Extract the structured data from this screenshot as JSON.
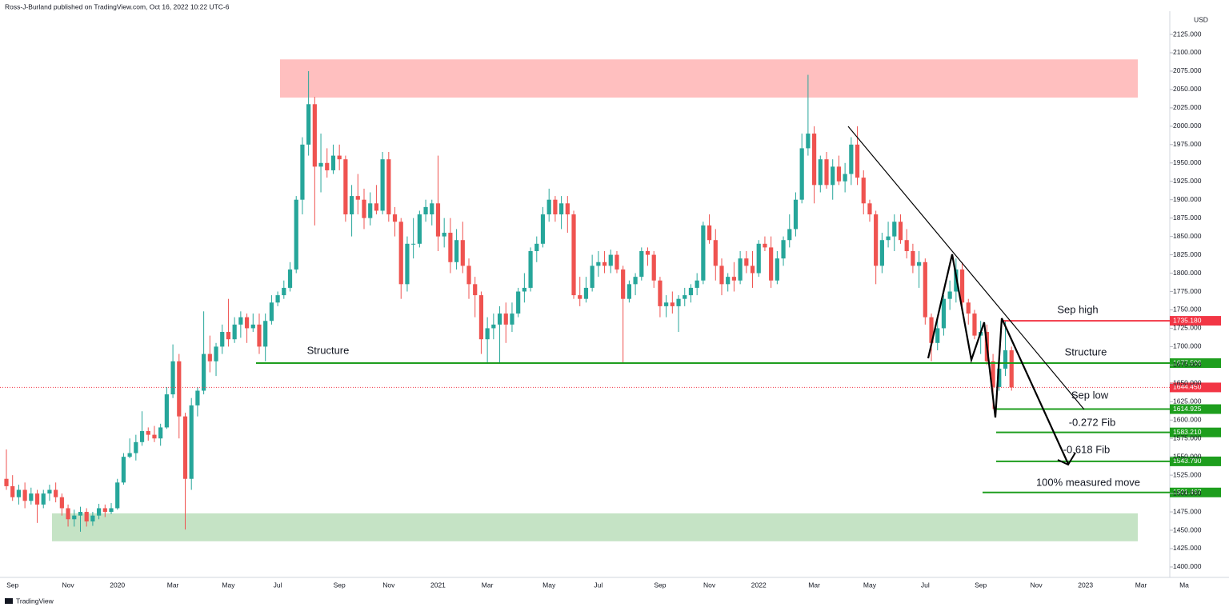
{
  "header": "Ross-J-Burland published on TradingView.com, Oct 16, 2022 10:22 UTC-6",
  "footer": "TradingView",
  "chart_data": {
    "type": "candlestick",
    "currency": "USD",
    "categories": [
      null,
      "Sep",
      null,
      null,
      null,
      null,
      null,
      null,
      null,
      null,
      "Nov",
      null,
      null,
      null,
      null,
      null,
      null,
      null,
      "2020",
      null,
      null,
      null,
      null,
      null,
      null,
      null,
      null,
      "Mar",
      null,
      null,
      null,
      null,
      null,
      null,
      null,
      null,
      "May",
      null,
      null,
      null,
      null,
      null,
      null,
      null,
      "Jul",
      null,
      null,
      null,
      null,
      null,
      null,
      null,
      null,
      null,
      "Sep",
      null,
      null,
      null,
      null,
      null,
      null,
      null,
      "Nov",
      null,
      null,
      null,
      null,
      null,
      null,
      null,
      "2021",
      null,
      null,
      null,
      null,
      null,
      null,
      null,
      "Mar",
      null,
      null,
      null,
      null,
      null,
      null,
      null,
      null,
      null,
      "May",
      null,
      null,
      null,
      null,
      null,
      null,
      null,
      "Jul",
      null,
      null,
      null,
      null,
      null,
      null,
      null,
      null,
      null,
      "Sep",
      null,
      null,
      null,
      null,
      null,
      null,
      null,
      "Nov",
      null,
      null,
      null,
      null,
      null,
      null,
      null,
      "2022",
      null,
      null,
      null,
      null,
      null,
      null,
      null,
      null,
      "Mar",
      null,
      null,
      null,
      null,
      null,
      null,
      null,
      null,
      "May",
      null,
      null,
      null,
      null,
      null,
      null,
      null,
      null,
      "Jul",
      null,
      null,
      null,
      null,
      null,
      null,
      null,
      null,
      "Sep",
      null,
      null,
      null,
      null,
      null,
      null,
      null,
      null,
      "Nov",
      null,
      null,
      null,
      null,
      null,
      null,
      null,
      "2023",
      null,
      null,
      null,
      null,
      null,
      null,
      null,
      null,
      "Mar",
      null,
      null,
      null,
      null,
      null,
      null,
      "Ma",
      null
    ],
    "ohlc": [
      [
        1520,
        1560,
        1505,
        1510
      ],
      [
        1510,
        1525,
        1490,
        1495
      ],
      [
        1495,
        1512,
        1485,
        1505
      ],
      [
        1505,
        1515,
        1480,
        1490
      ],
      [
        1490,
        1508,
        1485,
        1500
      ],
      [
        1500,
        1505,
        1460,
        1485
      ],
      [
        1485,
        1505,
        1480,
        1500
      ],
      [
        1500,
        1512,
        1490,
        1505
      ],
      [
        1505,
        1515,
        1488,
        1495
      ],
      [
        1495,
        1500,
        1470,
        1480
      ],
      [
        1480,
        1485,
        1455,
        1465
      ],
      [
        1465,
        1478,
        1455,
        1470
      ],
      [
        1470,
        1482,
        1448,
        1475
      ],
      [
        1475,
        1480,
        1455,
        1462
      ],
      [
        1462,
        1475,
        1456,
        1470
      ],
      [
        1470,
        1486,
        1465,
        1480
      ],
      [
        1480,
        1485,
        1468,
        1475
      ],
      [
        1475,
        1487,
        1472,
        1480
      ],
      [
        1480,
        1520,
        1478,
        1515
      ],
      [
        1515,
        1555,
        1512,
        1550
      ],
      [
        1550,
        1575,
        1548,
        1555
      ],
      [
        1555,
        1580,
        1545,
        1570
      ],
      [
        1570,
        1612,
        1565,
        1585
      ],
      [
        1585,
        1590,
        1572,
        1580
      ],
      [
        1580,
        1592,
        1570,
        1575
      ],
      [
        1575,
        1595,
        1565,
        1590
      ],
      [
        1590,
        1645,
        1588,
        1635
      ],
      [
        1635,
        1703,
        1630,
        1680
      ],
      [
        1680,
        1690,
        1575,
        1605
      ],
      [
        1605,
        1610,
        1451,
        1520
      ],
      [
        1520,
        1630,
        1505,
        1620
      ],
      [
        1620,
        1645,
        1605,
        1640
      ],
      [
        1640,
        1748,
        1635,
        1690
      ],
      [
        1690,
        1715,
        1665,
        1680
      ],
      [
        1680,
        1705,
        1660,
        1700
      ],
      [
        1700,
        1730,
        1690,
        1720
      ],
      [
        1720,
        1765,
        1700,
        1710
      ],
      [
        1710,
        1740,
        1705,
        1730
      ],
      [
        1730,
        1748,
        1712,
        1740
      ],
      [
        1740,
        1745,
        1705,
        1725
      ],
      [
        1725,
        1745,
        1720,
        1730
      ],
      [
        1730,
        1745,
        1690,
        1700
      ],
      [
        1700,
        1745,
        1680,
        1735
      ],
      [
        1735,
        1770,
        1730,
        1760
      ],
      [
        1760,
        1775,
        1755,
        1770
      ],
      [
        1770,
        1790,
        1765,
        1780
      ],
      [
        1780,
        1815,
        1775,
        1805
      ],
      [
        1805,
        1905,
        1800,
        1900
      ],
      [
        1900,
        1985,
        1880,
        1975
      ],
      [
        1975,
        2075,
        1960,
        2030
      ],
      [
        2030,
        2040,
        1865,
        1945
      ],
      [
        1945,
        1990,
        1910,
        1950
      ],
      [
        1950,
        1970,
        1930,
        1940
      ],
      [
        1940,
        1975,
        1935,
        1960
      ],
      [
        1960,
        1975,
        1940,
        1955
      ],
      [
        1955,
        1960,
        1870,
        1880
      ],
      [
        1880,
        1920,
        1850,
        1905
      ],
      [
        1905,
        1935,
        1880,
        1900
      ],
      [
        1900,
        1915,
        1860,
        1875
      ],
      [
        1875,
        1910,
        1865,
        1895
      ],
      [
        1895,
        1920,
        1880,
        1885
      ],
      [
        1885,
        1965,
        1880,
        1955
      ],
      [
        1955,
        1965,
        1870,
        1880
      ],
      [
        1880,
        1890,
        1850,
        1870
      ],
      [
        1870,
        1875,
        1765,
        1785
      ],
      [
        1785,
        1850,
        1775,
        1840
      ],
      [
        1840,
        1875,
        1820,
        1840
      ],
      [
        1840,
        1885,
        1835,
        1880
      ],
      [
        1880,
        1900,
        1870,
        1890
      ],
      [
        1880,
        1900,
        1865,
        1895
      ],
      [
        1895,
        1960,
        1830,
        1850
      ],
      [
        1850,
        1875,
        1835,
        1855
      ],
      [
        1855,
        1875,
        1800,
        1815
      ],
      [
        1815,
        1860,
        1805,
        1845
      ],
      [
        1845,
        1870,
        1800,
        1810
      ],
      [
        1810,
        1820,
        1765,
        1785
      ],
      [
        1785,
        1795,
        1740,
        1770
      ],
      [
        1770,
        1775,
        1690,
        1710
      ],
      [
        1710,
        1740,
        1678,
        1725
      ],
      [
        1725,
        1745,
        1710,
        1730
      ],
      [
        1730,
        1755,
        1678,
        1745
      ],
      [
        1745,
        1760,
        1705,
        1730
      ],
      [
        1730,
        1760,
        1720,
        1745
      ],
      [
        1745,
        1780,
        1740,
        1775
      ],
      [
        1775,
        1800,
        1760,
        1780
      ],
      [
        1780,
        1835,
        1775,
        1830
      ],
      [
        1830,
        1850,
        1815,
        1840
      ],
      [
        1840,
        1890,
        1835,
        1880
      ],
      [
        1880,
        1915,
        1870,
        1900
      ],
      [
        1900,
        1905,
        1870,
        1880
      ],
      [
        1880,
        1905,
        1860,
        1895
      ],
      [
        1895,
        1905,
        1855,
        1880
      ],
      [
        1880,
        1885,
        1765,
        1770
      ],
      [
        1770,
        1795,
        1755,
        1765
      ],
      [
        1765,
        1795,
        1760,
        1780
      ],
      [
        1780,
        1825,
        1775,
        1810
      ],
      [
        1810,
        1830,
        1795,
        1815
      ],
      [
        1815,
        1830,
        1800,
        1810
      ],
      [
        1810,
        1832,
        1800,
        1825
      ],
      [
        1825,
        1830,
        1800,
        1805
      ],
      [
        1805,
        1810,
        1678,
        1765
      ],
      [
        1765,
        1790,
        1760,
        1785
      ],
      [
        1785,
        1800,
        1770,
        1795
      ],
      [
        1795,
        1835,
        1790,
        1830
      ],
      [
        1830,
        1835,
        1810,
        1825
      ],
      [
        1825,
        1830,
        1780,
        1790
      ],
      [
        1790,
        1795,
        1740,
        1755
      ],
      [
        1755,
        1770,
        1740,
        1760
      ],
      [
        1760,
        1775,
        1745,
        1755
      ],
      [
        1755,
        1770,
        1720,
        1765
      ],
      [
        1765,
        1780,
        1755,
        1770
      ],
      [
        1770,
        1785,
        1760,
        1780
      ],
      [
        1780,
        1800,
        1770,
        1790
      ],
      [
        1790,
        1870,
        1785,
        1865
      ],
      [
        1865,
        1880,
        1840,
        1845
      ],
      [
        1845,
        1860,
        1790,
        1810
      ],
      [
        1810,
        1820,
        1770,
        1785
      ],
      [
        1785,
        1800,
        1775,
        1795
      ],
      [
        1795,
        1815,
        1775,
        1790
      ],
      [
        1790,
        1830,
        1785,
        1820
      ],
      [
        1820,
        1830,
        1800,
        1810
      ],
      [
        1810,
        1830,
        1780,
        1800
      ],
      [
        1800,
        1845,
        1795,
        1840
      ],
      [
        1840,
        1850,
        1830,
        1835
      ],
      [
        1835,
        1850,
        1780,
        1790
      ],
      [
        1790,
        1830,
        1785,
        1820
      ],
      [
        1820,
        1850,
        1810,
        1845
      ],
      [
        1845,
        1880,
        1835,
        1860
      ],
      [
        1860,
        1910,
        1850,
        1900
      ],
      [
        1900,
        1990,
        1895,
        1970
      ],
      [
        1970,
        2070,
        1960,
        1990
      ],
      [
        1990,
        2000,
        1895,
        1920
      ],
      [
        1920,
        1960,
        1910,
        1955
      ],
      [
        1955,
        1965,
        1915,
        1920
      ],
      [
        1920,
        1955,
        1900,
        1945
      ],
      [
        1945,
        1960,
        1920,
        1925
      ],
      [
        1925,
        1950,
        1910,
        1935
      ],
      [
        1935,
        1985,
        1920,
        1975
      ],
      [
        1975,
        2000,
        1920,
        1930
      ],
      [
        1930,
        1940,
        1880,
        1895
      ],
      [
        1895,
        1900,
        1870,
        1880
      ],
      [
        1880,
        1885,
        1785,
        1810
      ],
      [
        1810,
        1855,
        1800,
        1845
      ],
      [
        1845,
        1870,
        1835,
        1850
      ],
      [
        1850,
        1880,
        1830,
        1870
      ],
      [
        1870,
        1880,
        1840,
        1845
      ],
      [
        1845,
        1860,
        1820,
        1830
      ],
      [
        1830,
        1840,
        1800,
        1810
      ],
      [
        1810,
        1830,
        1780,
        1815
      ],
      [
        1815,
        1820,
        1730,
        1740
      ],
      [
        1740,
        1745,
        1680,
        1705
      ],
      [
        1705,
        1740,
        1695,
        1725
      ],
      [
        1725,
        1770,
        1715,
        1765
      ],
      [
        1765,
        1790,
        1750,
        1775
      ],
      [
        1775,
        1820,
        1760,
        1805
      ],
      [
        1805,
        1815,
        1745,
        1760
      ],
      [
        1760,
        1765,
        1730,
        1745
      ],
      [
        1745,
        1750,
        1710,
        1715
      ],
      [
        1715,
        1735,
        1690,
        1720
      ],
      [
        1720,
        1730,
        1675,
        1680
      ],
      [
        1680,
        1690,
        1615,
        1645
      ],
      [
        1645,
        1680,
        1640,
        1670
      ],
      [
        1670,
        1735,
        1660,
        1695
      ],
      [
        1695,
        1700,
        1640,
        1644.45
      ],
      null,
      null,
      null,
      null,
      null,
      null,
      null,
      null,
      null,
      null,
      null,
      null,
      null,
      null,
      null,
      null,
      null,
      null,
      null,
      null,
      null,
      null,
      null,
      null,
      null,
      null,
      null,
      null,
      null
    ],
    "up_color": "#26a69a",
    "down_color": "#ef5350",
    "ylim": [
      1385.8,
      2156.6
    ],
    "yticks": [
      {
        "value": 1400,
        "label": "1400.000"
      },
      {
        "value": 1425,
        "label": "1425.000"
      },
      {
        "value": 1450,
        "label": "1450.000"
      },
      {
        "value": 1475,
        "label": "1475.000"
      },
      {
        "value": 1500,
        "label": "1500.000"
      },
      {
        "value": 1525,
        "label": "1525.000"
      },
      {
        "value": 1550,
        "label": "1550.000"
      },
      {
        "value": 1575,
        "label": "1575.000"
      },
      {
        "value": 1600,
        "label": "1600.000"
      },
      {
        "value": 1625,
        "label": "1625.000"
      },
      {
        "value": 1650,
        "label": "1650.000"
      },
      {
        "value": 1675,
        "label": "1675.000"
      },
      {
        "value": 1700,
        "label": "1700.000"
      },
      {
        "value": 1725,
        "label": "1725.000"
      },
      {
        "value": 1750,
        "label": "1750.000"
      },
      {
        "value": 1775,
        "label": "1775.000"
      },
      {
        "value": 1800,
        "label": "1800.000"
      },
      {
        "value": 1825,
        "label": "1825.000"
      },
      {
        "value": 1850,
        "label": "1850.000"
      },
      {
        "value": 1875,
        "label": "1875.000"
      },
      {
        "value": 1900,
        "label": "1900.000"
      },
      {
        "value": 1925,
        "label": "1925.000"
      },
      {
        "value": 1950,
        "label": "1950.000"
      },
      {
        "value": 1975,
        "label": "1975.000"
      },
      {
        "value": 2000,
        "label": "2000.000"
      },
      {
        "value": 2025,
        "label": "2025.000"
      },
      {
        "value": 2050,
        "label": "2050.000"
      },
      {
        "value": 2075,
        "label": "2075.000"
      },
      {
        "value": 2100,
        "label": "2100.000"
      },
      {
        "value": 2125,
        "label": "2125.000"
      }
    ],
    "zones": [
      {
        "from": 2039,
        "to": 2091,
        "color": "rgba(255,138,138,0.55)"
      },
      {
        "from": 1435,
        "to": 1473,
        "color": "rgba(140,200,140,0.5)"
      }
    ],
    "levels": [
      {
        "value": 1735.18,
        "label": "1735.180",
        "color": "#f23645"
      },
      {
        "value": 1677.506,
        "label": "1677.506",
        "color": "#1e9e1e"
      },
      {
        "value": 1614.925,
        "label": "1614.925",
        "color": "#1e9e1e"
      },
      {
        "value": 1583.21,
        "label": "1583.210",
        "color": "#1e9e1e"
      },
      {
        "value": 1543.79,
        "label": "1543.790",
        "color": "#1e9e1e"
      },
      {
        "value": 1501.467,
        "label": "1501.467",
        "color": "#1e9e1e"
      }
    ],
    "last_price": {
      "value": 1644.45,
      "label": "1644.450",
      "color": "#f23645"
    },
    "annotations": [
      "Sep high",
      "Structure",
      "Structure",
      "Sep low",
      "-0.272 Fib",
      "-0.618 Fib",
      "100% measured move"
    ]
  }
}
